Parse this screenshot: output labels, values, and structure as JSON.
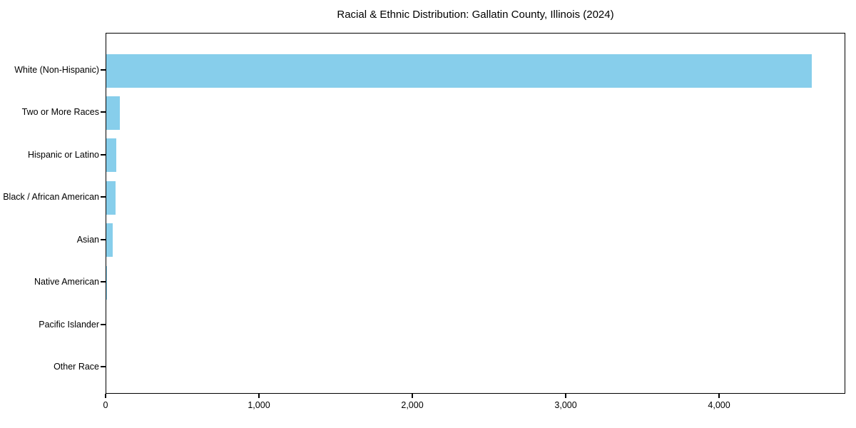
{
  "chart_data": {
    "type": "bar",
    "orientation": "horizontal",
    "title": "Racial & Ethnic Distribution: Gallatin County, Illinois (2024)",
    "categories": [
      "White (Non-Hispanic)",
      "Two or More Races",
      "Hispanic or Latino",
      "Black / African American",
      "Asian",
      "Native American",
      "Pacific Islander",
      "Other Race"
    ],
    "values": [
      4600,
      90,
      65,
      60,
      40,
      5,
      0,
      0
    ],
    "xlabel": "",
    "ylabel": "",
    "xlim": [
      0,
      4823
    ],
    "x_ticks": [
      {
        "value": 0,
        "label": "0"
      },
      {
        "value": 1000,
        "label": "1,000"
      },
      {
        "value": 2000,
        "label": "2,000"
      },
      {
        "value": 3000,
        "label": "3,000"
      },
      {
        "value": 4000,
        "label": "4,000"
      }
    ],
    "grid": false,
    "legend": "none",
    "bar_color": "#87CEEB",
    "axis_color": "#000000",
    "text_color": "#000000",
    "background_color": "#FFFFFF"
  }
}
